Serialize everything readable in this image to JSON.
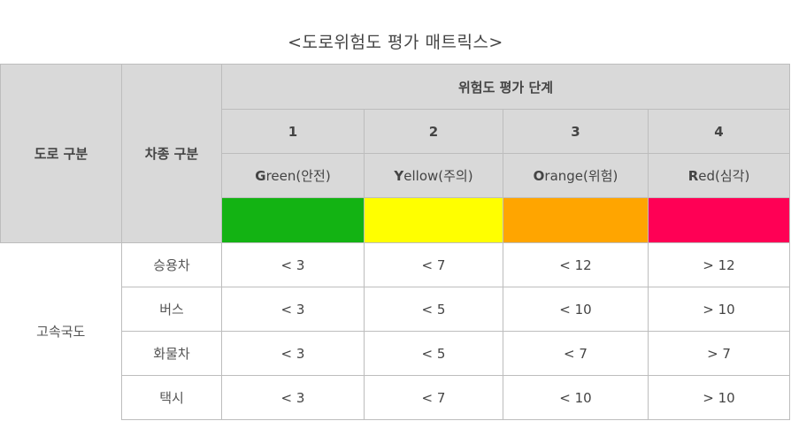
{
  "title": "<도로위험도 평가 매트릭스>",
  "header": {
    "road_col": "도로 구분",
    "vehicle_col": "차종 구분",
    "risk_group": "위험도 평가 단계",
    "levels": [
      {
        "num": "1",
        "initial": "G",
        "rest": "reen(안전)",
        "color": "#13b313"
      },
      {
        "num": "2",
        "initial": "Y",
        "rest": "ellow(주의)",
        "color": "#ffff00"
      },
      {
        "num": "3",
        "initial": "O",
        "rest": "range(위험)",
        "color": "#ffa500"
      },
      {
        "num": "4",
        "initial": "R",
        "rest": "ed(심각)",
        "color": "#ff0055"
      }
    ]
  },
  "body": {
    "road_type": "고속국도",
    "rows": [
      {
        "vehicle": "승용차",
        "values": [
          "< 3",
          "< 7",
          "< 12",
          "> 12"
        ]
      },
      {
        "vehicle": "버스",
        "values": [
          "< 3",
          "< 5",
          "< 10",
          "> 10"
        ]
      },
      {
        "vehicle": "화물차",
        "values": [
          "< 3",
          "< 5",
          "< 7",
          "> 7"
        ]
      },
      {
        "vehicle": "택시",
        "values": [
          "< 3",
          "< 7",
          "< 10",
          "> 10"
        ]
      }
    ]
  }
}
